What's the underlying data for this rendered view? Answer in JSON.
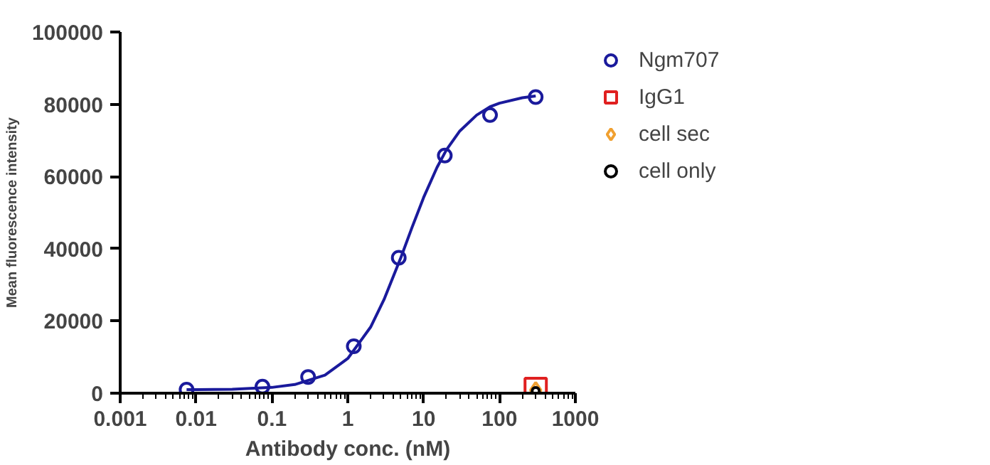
{
  "chart_data": {
    "type": "scatter",
    "xlabel": "Antibody conc. (nM)",
    "ylabel": "Mean fluorescence intensity",
    "log": "x",
    "xlim": [
      0.001,
      1000
    ],
    "xticks": [
      0.001,
      0.01,
      0.1,
      1,
      10,
      100,
      1000
    ],
    "ylim": [
      0,
      100000
    ],
    "yticks": [
      0,
      20000,
      40000,
      60000,
      80000,
      100000
    ],
    "grid": false,
    "legend": "top right",
    "series": [
      {
        "type": "line",
        "color": "#1a1a9c",
        "x": [
          0.0075,
          0.01,
          0.03,
          0.1,
          0.2,
          0.5,
          1,
          2,
          3,
          5,
          7,
          10,
          15,
          20,
          30,
          50,
          75,
          100,
          200,
          300
        ],
        "values": [
          1000,
          1000,
          1100,
          1600,
          2400,
          5000,
          9600,
          18300,
          25900,
          37500,
          45800,
          54200,
          62500,
          67400,
          72600,
          77000,
          79300,
          80300,
          81800,
          82300
        ],
        "marker": "none"
      },
      {
        "name": "Ngm707",
        "color": "#1a1a9c",
        "marker": "circle",
        "x": [
          0.0075,
          0.075,
          0.3,
          1.2,
          4.7,
          19,
          75,
          300
        ],
        "values": [
          1000,
          1800,
          4500,
          13000,
          37500,
          65800,
          77000,
          82000
        ]
      },
      {
        "name": "IgG1",
        "color": "#e02020",
        "marker": "square",
        "x": [
          300
        ],
        "values": [
          1200
        ]
      },
      {
        "name": "cell sec",
        "color": "#f0a030",
        "marker": "diamond",
        "x": [
          300
        ],
        "values": [
          800
        ]
      },
      {
        "name": "cell only",
        "color": "#000000",
        "marker": "circle",
        "x": [
          300
        ],
        "values": [
          600
        ]
      }
    ]
  }
}
